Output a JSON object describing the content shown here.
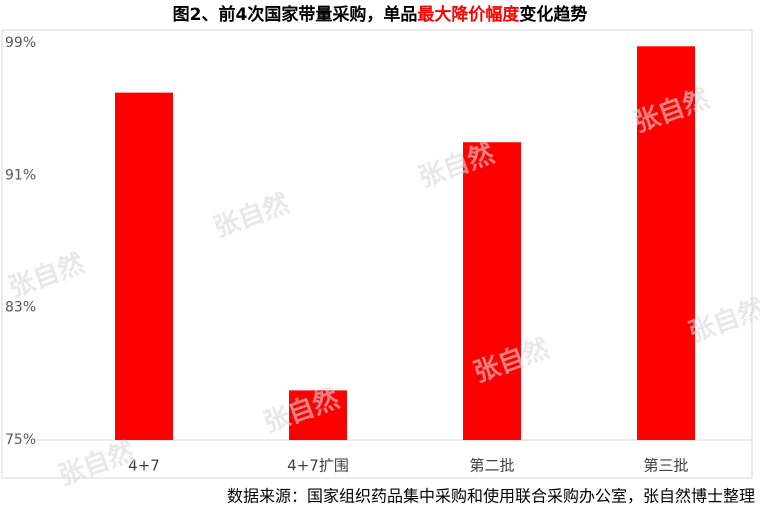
{
  "chart_data": {
    "type": "bar",
    "title": [
      "图2、前4次国家带量采购，单品",
      "最大降价幅度",
      "变化趋势"
    ],
    "title_colors": [
      "#000000",
      "#ff0000",
      "#000000"
    ],
    "categories": [
      "4+7",
      "4+7扩围",
      "第二批",
      "第三批"
    ],
    "values": [
      96,
      78,
      93,
      98.8
    ],
    "color": "#ff0000",
    "ylim": [
      75,
      99
    ],
    "yticks": [
      {
        "value": 75,
        "label": "75%"
      },
      {
        "value": 83,
        "label": "83%"
      },
      {
        "value": 91,
        "label": "91%"
      },
      {
        "value": 99,
        "label": "99%"
      }
    ],
    "grid": false,
    "watermark": "张自然",
    "source": "数据来源：国家组织药品集中采购和使用联合采购办公室，张自然博士整理"
  }
}
